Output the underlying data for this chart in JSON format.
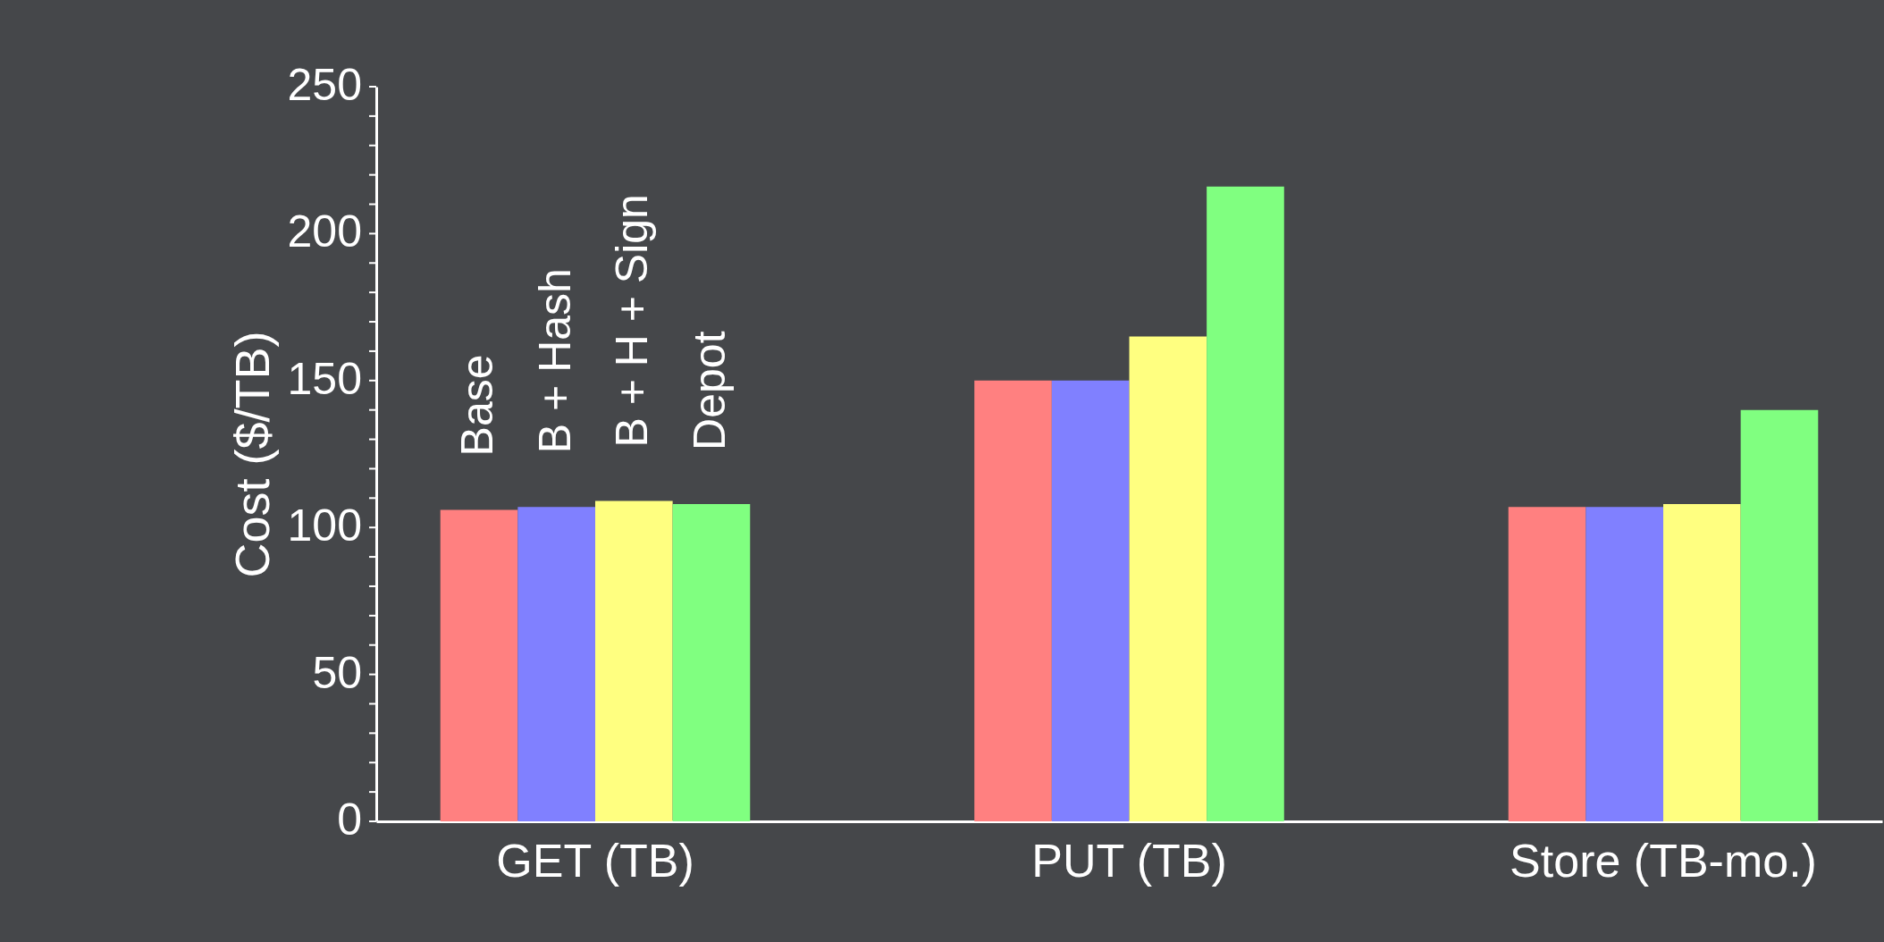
{
  "chart_data": {
    "type": "bar",
    "ylabel": "Cost ($/TB)",
    "categories": [
      "GET (TB)",
      "PUT (TB)",
      "Store (TB-mo.)"
    ],
    "series": [
      {
        "name": "Base",
        "color": "#ff8080",
        "values": [
          106,
          150,
          107
        ]
      },
      {
        "name": "B + Hash",
        "color": "#8080ff",
        "values": [
          107,
          150,
          107
        ]
      },
      {
        "name": "B + H + Sign",
        "color": "#ffff80",
        "values": [
          109,
          165,
          108
        ]
      },
      {
        "name": "Depot",
        "color": "#80ff80",
        "values": [
          108,
          216,
          140
        ]
      }
    ],
    "ylim": [
      0,
      250
    ],
    "yticks": [
      0,
      {
        "value": 10,
        "label": null
      },
      {
        "value": 20,
        "label": null
      },
      {
        "value": 30,
        "label": null
      },
      {
        "value": 40,
        "label": null
      },
      50,
      {
        "value": 60,
        "label": null
      },
      {
        "value": 70,
        "label": null
      },
      {
        "value": 80,
        "label": null
      },
      {
        "value": 90,
        "label": null
      },
      100,
      {
        "value": 110,
        "label": null
      },
      {
        "value": 120,
        "label": null
      },
      {
        "value": 130,
        "label": null
      },
      {
        "value": 140,
        "label": null
      },
      150,
      {
        "value": 160,
        "label": null
      },
      {
        "value": 170,
        "label": null
      },
      {
        "value": 180,
        "label": null
      },
      {
        "value": 190,
        "label": null
      },
      200,
      {
        "value": 210,
        "label": null
      },
      {
        "value": 220,
        "label": null
      },
      {
        "value": 230,
        "label": null
      },
      {
        "value": 240,
        "label": null
      },
      250
    ],
    "grid": false
  }
}
